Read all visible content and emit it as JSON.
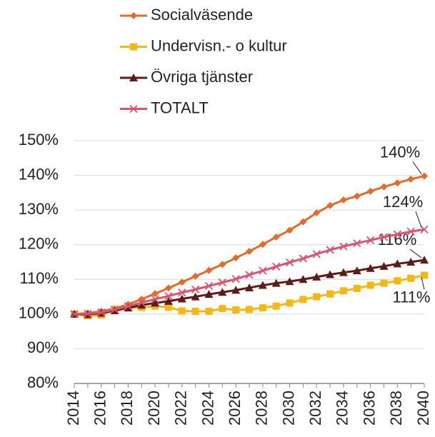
{
  "chart_data": {
    "type": "line",
    "x": [
      2014,
      2015,
      2016,
      2017,
      2018,
      2019,
      2020,
      2021,
      2022,
      2023,
      2024,
      2025,
      2026,
      2027,
      2028,
      2029,
      2030,
      2031,
      2032,
      2033,
      2034,
      2035,
      2036,
      2037,
      2038,
      2039,
      2040
    ],
    "xlim": [
      2014,
      2040
    ],
    "xticks": [
      2014,
      2016,
      2018,
      2020,
      2022,
      2024,
      2026,
      2028,
      2030,
      2032,
      2034,
      2036,
      2038,
      2040
    ],
    "ylim": [
      80,
      150
    ],
    "yticks": [
      {
        "value": 80,
        "label": "80%"
      },
      {
        "value": 90,
        "label": "90%"
      },
      {
        "value": 100,
        "label": "100%"
      },
      {
        "value": 110,
        "label": "110%"
      },
      {
        "value": 120,
        "label": "120%"
      },
      {
        "value": 130,
        "label": "130%"
      },
      {
        "value": 140,
        "label": "140%"
      },
      {
        "value": 150,
        "label": "150%"
      }
    ],
    "grid": true,
    "legend": "top",
    "series": [
      {
        "name": "Socialväsende",
        "color": "#e36c2a",
        "marker": "diamond",
        "values": [
          100,
          100.3,
          100.8,
          101.6,
          102.8,
          104.3,
          105.9,
          107.5,
          109.2,
          110.9,
          112.6,
          114.3,
          116.2,
          118.1,
          120.1,
          122.2,
          124.2,
          126.6,
          129.2,
          131.3,
          132.9,
          134.0,
          135.4,
          136.7,
          137.8,
          138.9,
          139.8
        ],
        "value_labels": [
          null,
          null,
          null,
          null,
          null,
          null,
          null,
          null,
          null,
          null,
          null,
          null,
          null,
          null,
          null,
          null,
          null,
          null,
          null,
          null,
          null,
          null,
          null,
          null,
          null,
          null,
          "140%"
        ]
      },
      {
        "name": "Undervisn.- o kultur",
        "color": "#f5b813",
        "marker": "square",
        "values": [
          100,
          99.5,
          99.7,
          101.3,
          101.8,
          101.9,
          102.3,
          102.0,
          100.9,
          100.8,
          100.8,
          101.6,
          101.2,
          101.3,
          101.8,
          102.3,
          103.2,
          104.2,
          105.0,
          105.8,
          106.7,
          107.4,
          108.3,
          108.9,
          109.6,
          110.3,
          111.2
        ],
        "value_labels": [
          null,
          null,
          null,
          null,
          null,
          null,
          null,
          null,
          null,
          null,
          null,
          null,
          null,
          null,
          null,
          null,
          null,
          null,
          null,
          null,
          null,
          null,
          null,
          null,
          null,
          null,
          "111%"
        ]
      },
      {
        "name": "Övriga tjänster",
        "color": "#5b1d14",
        "marker": "triangle",
        "values": [
          100,
          99.9,
          100.3,
          101.0,
          101.8,
          102.6,
          103.2,
          103.7,
          104.4,
          105.0,
          105.7,
          106.3,
          106.9,
          107.6,
          108.3,
          108.9,
          109.4,
          110.0,
          110.7,
          111.4,
          112.0,
          112.5,
          113.2,
          113.8,
          114.5,
          115.0,
          115.6
        ],
        "value_labels": [
          null,
          null,
          null,
          null,
          null,
          null,
          null,
          null,
          null,
          null,
          null,
          null,
          null,
          null,
          null,
          null,
          null,
          null,
          null,
          null,
          null,
          null,
          null,
          null,
          null,
          null,
          "116%"
        ]
      },
      {
        "name": "TOTALT",
        "color": "#d9546e",
        "marker": "x",
        "values": [
          100,
          100.1,
          100.5,
          101.3,
          102.3,
          103.3,
          104.3,
          105.2,
          106.2,
          107.1,
          108.1,
          109.1,
          110.1,
          111.3,
          112.5,
          113.7,
          114.9,
          116.0,
          117.3,
          118.5,
          119.5,
          120.4,
          121.3,
          122.2,
          123.0,
          123.8,
          124.4
        ],
        "value_labels": [
          null,
          null,
          null,
          null,
          null,
          null,
          null,
          null,
          null,
          null,
          null,
          null,
          null,
          null,
          null,
          null,
          null,
          null,
          null,
          null,
          null,
          null,
          null,
          null,
          null,
          null,
          "124%"
        ]
      }
    ]
  }
}
